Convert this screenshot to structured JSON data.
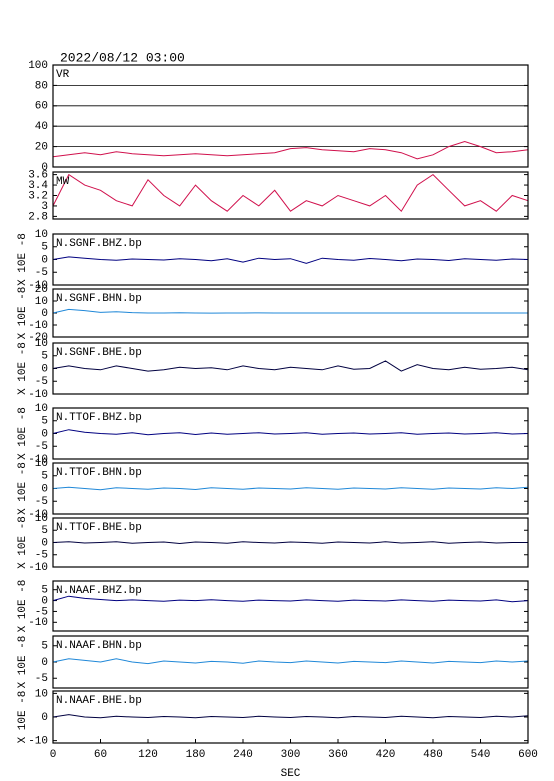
{
  "chart_data": [
    {
      "type": "line",
      "header": "2022/08/12 03:00",
      "title": "VR",
      "color": "#d0104c",
      "grid": true,
      "x": [
        0,
        20,
        40,
        60,
        80,
        100,
        120,
        140,
        160,
        180,
        200,
        220,
        240,
        260,
        280,
        300,
        320,
        340,
        360,
        380,
        400,
        420,
        440,
        460,
        480,
        500,
        520,
        540,
        560,
        580,
        600
      ],
      "values": [
        10,
        12,
        14,
        12,
        15,
        13,
        12,
        11,
        12,
        13,
        12,
        11,
        12,
        13,
        14,
        18,
        19,
        17,
        16,
        15,
        18,
        17,
        14,
        8,
        12,
        20,
        25,
        20,
        14,
        15,
        17
      ],
      "xlim": [
        0,
        600
      ],
      "ylim": [
        0,
        100
      ],
      "yticks": [
        0,
        20,
        40,
        60,
        80,
        100
      ]
    },
    {
      "type": "line",
      "title": "MW",
      "color": "#d0104c",
      "x": [
        0,
        20,
        40,
        60,
        80,
        100,
        120,
        140,
        160,
        180,
        200,
        220,
        240,
        260,
        280,
        300,
        320,
        340,
        360,
        380,
        400,
        420,
        440,
        460,
        480,
        500,
        520,
        540,
        560,
        580,
        600
      ],
      "values": [
        3.0,
        3.6,
        3.4,
        3.3,
        3.1,
        3.0,
        3.5,
        3.2,
        3.0,
        3.4,
        3.1,
        2.9,
        3.2,
        3.0,
        3.3,
        2.9,
        3.1,
        3.0,
        3.2,
        3.1,
        3.0,
        3.2,
        2.9,
        3.4,
        3.6,
        3.3,
        3.0,
        3.1,
        2.9,
        3.2,
        3.1
      ],
      "xlim": [
        0,
        600
      ],
      "ylim": [
        2.75,
        3.65
      ],
      "yticks": [
        2.8,
        3.0,
        3.2,
        3.4,
        3.6
      ]
    },
    {
      "type": "line",
      "title": "N.SGNF.BHZ.bp",
      "ylabel": "X 10E -8",
      "color": "#000080",
      "x": [
        0,
        20,
        40,
        60,
        80,
        100,
        120,
        140,
        160,
        180,
        200,
        220,
        240,
        260,
        280,
        300,
        320,
        340,
        360,
        380,
        400,
        420,
        440,
        460,
        480,
        500,
        520,
        540,
        560,
        580,
        600
      ],
      "values": [
        0,
        1,
        0.5,
        0,
        -0.3,
        0.2,
        0,
        -0.2,
        0.3,
        0,
        -0.5,
        0.3,
        -1,
        0.5,
        0,
        0.3,
        -1.5,
        0.5,
        0,
        -0.3,
        0.4,
        0,
        -0.5,
        0.2,
        0,
        -0.4,
        0.3,
        0,
        -0.3,
        0.2,
        0
      ],
      "xlim": [
        0,
        600
      ],
      "ylim": [
        -10,
        10
      ],
      "yticks": [
        -10,
        -5,
        0,
        5,
        10
      ]
    },
    {
      "type": "line",
      "title": "N.SGNF.BHN.bp",
      "ylabel": "X 10E -8",
      "color": "#2088d8",
      "x": [
        0,
        20,
        40,
        60,
        80,
        100,
        120,
        140,
        160,
        180,
        200,
        220,
        240,
        260,
        280,
        300,
        320,
        340,
        360,
        380,
        400,
        420,
        440,
        460,
        480,
        500,
        520,
        540,
        560,
        580,
        600
      ],
      "values": [
        0,
        3,
        2,
        0.5,
        1,
        0.3,
        0,
        0,
        0.2,
        0,
        -0.1,
        0,
        0,
        0.1,
        0,
        0,
        0,
        0,
        0,
        0,
        0,
        0,
        0,
        0,
        0,
        0,
        0,
        0,
        0,
        0,
        0
      ],
      "xlim": [
        0,
        600
      ],
      "ylim": [
        -20,
        20
      ],
      "yticks": [
        -20,
        -10,
        0,
        10,
        20
      ]
    },
    {
      "type": "line",
      "title": "N.SGNF.BHE.bp",
      "ylabel": "X 10E -8",
      "color": "#000040",
      "x": [
        0,
        20,
        40,
        60,
        80,
        100,
        120,
        140,
        160,
        180,
        200,
        220,
        240,
        260,
        280,
        300,
        320,
        340,
        360,
        380,
        400,
        420,
        440,
        460,
        480,
        500,
        520,
        540,
        560,
        580,
        600
      ],
      "values": [
        0,
        1,
        0,
        -0.5,
        1,
        0,
        -1,
        -0.5,
        0.5,
        0,
        0.3,
        -0.5,
        1,
        0,
        -0.5,
        0.5,
        0,
        -0.5,
        1,
        -0.3,
        0,
        3,
        -1,
        1.5,
        0,
        -0.5,
        0.5,
        -0.3,
        0,
        0.5,
        -0.5
      ],
      "xlim": [
        0,
        600
      ],
      "ylim": [
        -10,
        10
      ],
      "yticks": [
        -10,
        -5,
        0,
        5,
        10
      ]
    },
    {
      "type": "line",
      "title": "N.TTOF.BHZ.bp",
      "ylabel": "X 10E -8",
      "color": "#000080",
      "x": [
        0,
        20,
        40,
        60,
        80,
        100,
        120,
        140,
        160,
        180,
        200,
        220,
        240,
        260,
        280,
        300,
        320,
        340,
        360,
        380,
        400,
        420,
        440,
        460,
        480,
        500,
        520,
        540,
        560,
        580,
        600
      ],
      "values": [
        0,
        1.5,
        0.5,
        0,
        -0.3,
        0.3,
        -0.5,
        0,
        0.3,
        -0.4,
        0.2,
        -0.3,
        0,
        0.3,
        -0.2,
        0,
        0.3,
        -0.3,
        0,
        0.2,
        -0.2,
        0,
        0.3,
        -0.3,
        0,
        0.2,
        -0.2,
        0,
        0.3,
        -0.2,
        0
      ],
      "xlim": [
        0,
        600
      ],
      "ylim": [
        -10,
        10
      ],
      "yticks": [
        -10,
        -5,
        0,
        5,
        10
      ]
    },
    {
      "type": "line",
      "title": "N.TTOF.BHN.bp",
      "ylabel": "X 10E -8",
      "color": "#2088d8",
      "x": [
        0,
        20,
        40,
        60,
        80,
        100,
        120,
        140,
        160,
        180,
        200,
        220,
        240,
        260,
        280,
        300,
        320,
        340,
        360,
        380,
        400,
        420,
        440,
        460,
        480,
        500,
        520,
        540,
        560,
        580,
        600
      ],
      "values": [
        0,
        0.5,
        0,
        -0.5,
        0.3,
        0,
        -0.3,
        0.2,
        0,
        -0.4,
        0.3,
        0,
        -0.3,
        0.2,
        0,
        -0.2,
        0.3,
        0,
        -0.3,
        0.2,
        0,
        -0.2,
        0.3,
        0,
        -0.3,
        0.2,
        0,
        -0.2,
        0.3,
        0,
        0.5
      ],
      "xlim": [
        0,
        600
      ],
      "ylim": [
        -10,
        10
      ],
      "yticks": [
        -10,
        -5,
        0,
        5,
        10
      ]
    },
    {
      "type": "line",
      "title": "N.TTOF.BHE.bp",
      "ylabel": "X 10E -8",
      "color": "#000040",
      "x": [
        0,
        20,
        40,
        60,
        80,
        100,
        120,
        140,
        160,
        180,
        200,
        220,
        240,
        260,
        280,
        300,
        320,
        340,
        360,
        380,
        400,
        420,
        440,
        460,
        480,
        500,
        520,
        540,
        560,
        580,
        600
      ],
      "values": [
        0,
        0.3,
        -0.2,
        0,
        0.3,
        -0.3,
        0,
        0.2,
        -0.4,
        0.2,
        0,
        -0.3,
        0.3,
        0,
        -0.2,
        0.2,
        0,
        -0.3,
        0.2,
        0,
        -0.2,
        0.3,
        -0.2,
        0,
        0.3,
        -0.3,
        0,
        0.2,
        -0.2,
        0,
        0
      ],
      "xlim": [
        0,
        600
      ],
      "ylim": [
        -10,
        10
      ],
      "yticks": [
        -10,
        -5,
        0,
        5,
        10
      ]
    },
    {
      "type": "line",
      "title": "N.NAAF.BHZ.bp",
      "ylabel": "X 10E -8",
      "color": "#000080",
      "x": [
        0,
        20,
        40,
        60,
        80,
        100,
        120,
        140,
        160,
        180,
        200,
        220,
        240,
        260,
        280,
        300,
        320,
        340,
        360,
        380,
        400,
        420,
        440,
        460,
        480,
        500,
        520,
        540,
        560,
        580,
        600
      ],
      "values": [
        0,
        2,
        1,
        0.5,
        0,
        0.3,
        0,
        -0.3,
        0.2,
        0,
        0.4,
        0,
        -0.3,
        0.2,
        0,
        -0.2,
        0.3,
        0,
        -0.3,
        0.2,
        0,
        -0.2,
        0.3,
        0,
        -0.3,
        0.2,
        0,
        -0.2,
        0.3,
        -0.5,
        0
      ],
      "xlim": [
        0,
        600
      ],
      "ylim": [
        -14,
        9
      ],
      "yticks": [
        -10,
        -5,
        0,
        5
      ]
    },
    {
      "type": "line",
      "title": "N.NAAF.BHN.bp",
      "ylabel": "X 10E -8",
      "color": "#2088d8",
      "x": [
        0,
        20,
        40,
        60,
        80,
        100,
        120,
        140,
        160,
        180,
        200,
        220,
        240,
        260,
        280,
        300,
        320,
        340,
        360,
        380,
        400,
        420,
        440,
        460,
        480,
        500,
        520,
        540,
        560,
        580,
        600
      ],
      "values": [
        0,
        1,
        0.5,
        0,
        1,
        0,
        -0.5,
        0.3,
        0,
        -0.3,
        0.2,
        0,
        -0.4,
        0.3,
        0,
        -0.2,
        0.3,
        0,
        -0.3,
        0.2,
        0,
        -0.2,
        0.3,
        0,
        -0.3,
        0.2,
        0,
        -0.2,
        0.3,
        0,
        0.3
      ],
      "xlim": [
        0,
        600
      ],
      "ylim": [
        -8,
        8
      ],
      "yticks": [
        -5,
        0,
        5
      ]
    },
    {
      "type": "line",
      "title": "N.NAAF.BHE.bp",
      "ylabel": "X 10E -8",
      "xlabel": "SEC",
      "color": "#000040",
      "x": [
        0,
        20,
        40,
        60,
        80,
        100,
        120,
        140,
        160,
        180,
        200,
        220,
        240,
        260,
        280,
        300,
        320,
        340,
        360,
        380,
        400,
        420,
        440,
        460,
        480,
        500,
        520,
        540,
        560,
        580,
        600
      ],
      "values": [
        0,
        1,
        0,
        -0.3,
        0.3,
        0,
        -0.2,
        0.2,
        0,
        -0.3,
        0.2,
        0,
        -0.2,
        0.3,
        0,
        -0.2,
        0.2,
        0,
        -0.3,
        0.2,
        0,
        -0.2,
        0.3,
        0,
        -0.3,
        0.2,
        0,
        -0.2,
        0.3,
        0,
        0.5
      ],
      "xlim": [
        0,
        600
      ],
      "ylim": [
        -11,
        11
      ],
      "yticks": [
        -10,
        0,
        10
      ],
      "xticks": [
        0,
        60,
        120,
        180,
        240,
        300,
        360,
        420,
        480,
        540,
        600
      ]
    }
  ]
}
